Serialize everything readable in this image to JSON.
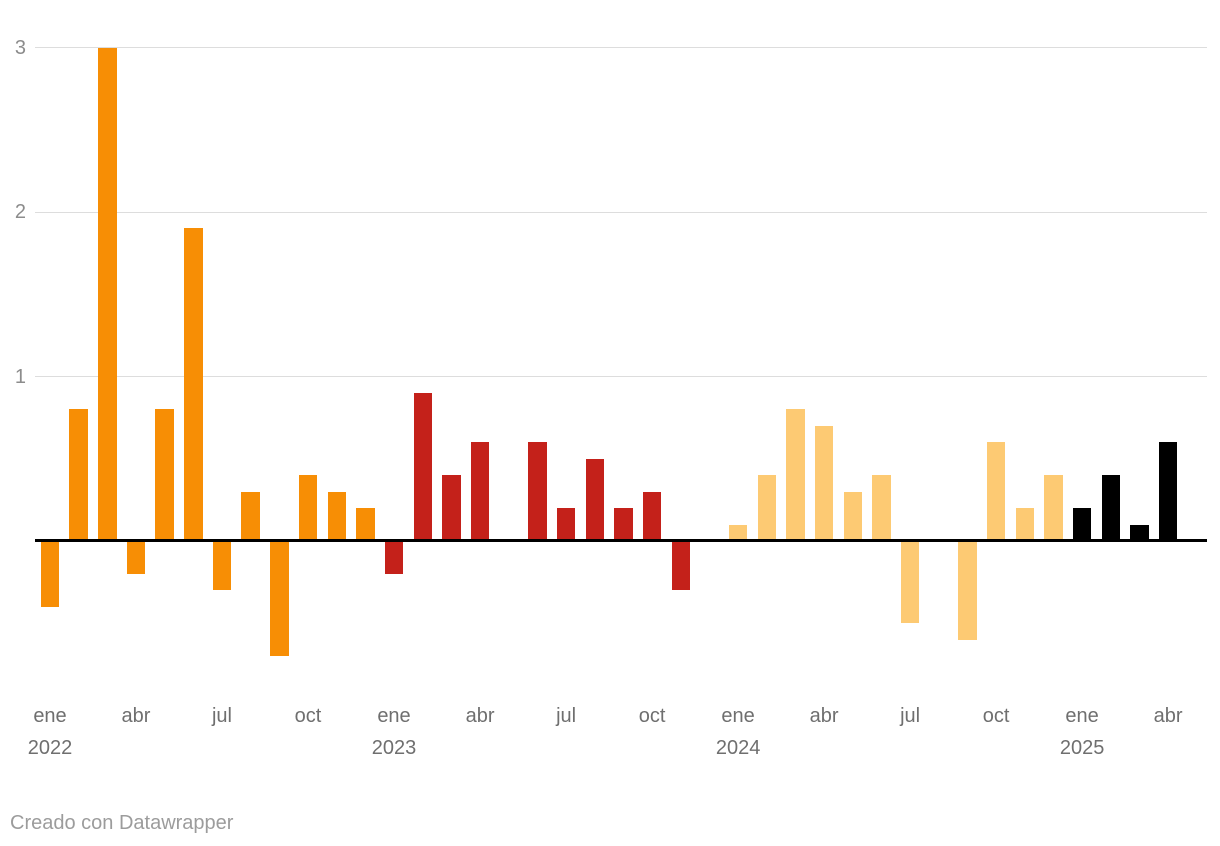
{
  "chart_data": {
    "type": "bar",
    "title": "",
    "xlabel": "",
    "ylabel": "",
    "y_axis": {
      "ticks": [
        1,
        2,
        3
      ],
      "ylim": [
        -0.85,
        3.05
      ],
      "grid": true,
      "zero_line": true
    },
    "x_axis": {
      "ticks": [
        {
          "month_index": 0,
          "label": "ene",
          "year_line": "2022"
        },
        {
          "month_index": 3,
          "label": "abr"
        },
        {
          "month_index": 6,
          "label": "jul"
        },
        {
          "month_index": 9,
          "label": "oct"
        },
        {
          "month_index": 12,
          "label": "ene",
          "year_line": "2023"
        },
        {
          "month_index": 15,
          "label": "abr"
        },
        {
          "month_index": 18,
          "label": "jul"
        },
        {
          "month_index": 21,
          "label": "oct"
        },
        {
          "month_index": 24,
          "label": "ene",
          "year_line": "2024"
        },
        {
          "month_index": 27,
          "label": "abr"
        },
        {
          "month_index": 30,
          "label": "jul"
        },
        {
          "month_index": 33,
          "label": "oct"
        },
        {
          "month_index": 36,
          "label": "ene",
          "year_line": "2025"
        },
        {
          "month_index": 39,
          "label": "abr"
        }
      ]
    },
    "series": [
      {
        "year": "2022",
        "color": "#F78E05",
        "months": [
          "ene",
          "feb",
          "mar",
          "abr",
          "may",
          "jun",
          "jul",
          "ago",
          "sep",
          "oct",
          "nov",
          "dic"
        ],
        "values": [
          -0.4,
          0.8,
          3.0,
          -0.2,
          0.8,
          1.9,
          -0.3,
          0.3,
          -0.7,
          0.4,
          0.3,
          0.2
        ]
      },
      {
        "year": "2023",
        "color": "#C4211A",
        "months": [
          "ene",
          "feb",
          "mar",
          "abr",
          "may",
          "jun",
          "jul",
          "ago",
          "sep",
          "oct",
          "nov",
          "dic"
        ],
        "values": [
          -0.2,
          0.9,
          0.4,
          0.6,
          0.0,
          0.6,
          0.2,
          0.5,
          0.2,
          0.3,
          -0.3,
          0.0
        ]
      },
      {
        "year": "2024",
        "color": "#FDCA73",
        "months": [
          "ene",
          "feb",
          "mar",
          "abr",
          "may",
          "jun",
          "jul",
          "ago",
          "sep",
          "oct",
          "nov",
          "dic"
        ],
        "values": [
          0.1,
          0.4,
          0.8,
          0.7,
          0.3,
          0.4,
          -0.5,
          0.0,
          -0.6,
          0.6,
          0.2,
          0.4
        ]
      },
      {
        "year": "2025",
        "color": "#000000",
        "months": [
          "ene",
          "feb",
          "mar",
          "abr"
        ],
        "values": [
          0.2,
          0.4,
          0.1,
          0.6
        ]
      }
    ]
  },
  "footer": {
    "attribution": "Creado con Datawrapper"
  },
  "colors": {
    "background": "#FFFFFF",
    "grid_line": "#DDDDDD",
    "zero_line": "#000000",
    "x_axis_label": "#6F6F6F",
    "y_axis_label": "#8C8C8C",
    "attribution_text": "#9C9C9C"
  }
}
